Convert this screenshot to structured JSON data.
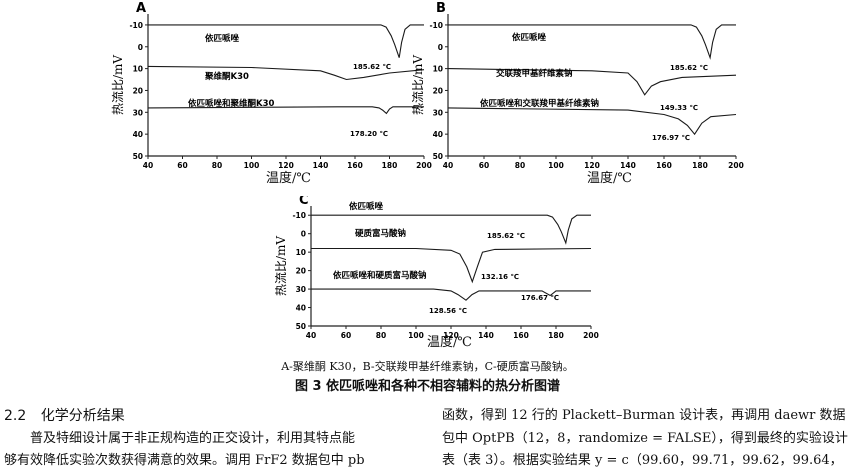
{
  "figure": {
    "subcaption": "A-聚维酮 K30，B-交联羧甲基纤维素钠，C-硬质富马酸钠。",
    "caption": "图 3   依匹哌唑和各种不相容辅料的热分析图谱"
  },
  "chart_data": [
    {
      "type": "line",
      "panel_label": "A",
      "xlabel": "温度/℃",
      "ylabel": "热流比/mV",
      "xlim": [
        40,
        200
      ],
      "ylim": [
        -15,
        50
      ],
      "y_inverted": true,
      "x_ticks": [
        "40",
        "60",
        "80",
        "100",
        "120",
        "140",
        "160",
        "180",
        "200"
      ],
      "y_ticks": [
        "-10",
        "0",
        "10",
        "20",
        "30",
        "40",
        "50"
      ],
      "series": [
        {
          "name": "依匹哌唑",
          "x": [
            40,
            175,
            178,
            181,
            183,
            185.6,
            187,
            189,
            192,
            200
          ],
          "y": [
            -10,
            -10,
            -9,
            -5,
            -1,
            5,
            -2,
            -8,
            -10,
            -10
          ],
          "annotation": "185.62 ℃"
        },
        {
          "name": "聚维酮K30",
          "x": [
            40,
            100,
            140,
            148,
            155,
            165,
            180,
            200
          ],
          "y": [
            9,
            9.5,
            11,
            13,
            15,
            14,
            12,
            10.5
          ],
          "annotation": ""
        },
        {
          "name": "依匹哌唑和聚维酮K30",
          "x": [
            40,
            150,
            170,
            174,
            176,
            178.2,
            180,
            182,
            200
          ],
          "y": [
            28,
            27.5,
            27.5,
            28,
            29,
            30.5,
            28.5,
            27.5,
            27.5
          ],
          "annotation": "178.20 ℃"
        }
      ]
    },
    {
      "type": "line",
      "panel_label": "B",
      "xlabel": "温度/℃",
      "ylabel": "热流比/mV",
      "xlim": [
        40,
        200
      ],
      "ylim": [
        -15,
        50
      ],
      "y_inverted": true,
      "x_ticks": [
        "40",
        "60",
        "80",
        "100",
        "120",
        "140",
        "160",
        "180",
        "200"
      ],
      "y_ticks": [
        "-10",
        "0",
        "10",
        "20",
        "30",
        "40",
        "50"
      ],
      "series": [
        {
          "name": "依匹哌唑",
          "x": [
            40,
            175,
            178,
            181,
            183,
            185.6,
            187,
            189,
            192,
            200
          ],
          "y": [
            -10,
            -10,
            -9,
            -5,
            -1,
            5,
            -2,
            -8,
            -10,
            -10
          ],
          "annotation": "185.62 ℃"
        },
        {
          "name": "交联羧甲基纤维素钠",
          "x": [
            40,
            120,
            140,
            145,
            149.3,
            153,
            158,
            170,
            200
          ],
          "y": [
            10,
            11,
            12,
            16,
            22,
            18,
            16,
            14,
            13
          ],
          "annotation": "149.33 ℃"
        },
        {
          "name": "依匹哌唑和交联羧甲基纤维素钠",
          "x": [
            40,
            140,
            160,
            168,
            173,
            177,
            181,
            186,
            200
          ],
          "y": [
            28,
            29,
            31,
            33,
            36,
            40,
            35,
            32,
            31
          ],
          "annotation": "176.97 ℃"
        }
      ]
    },
    {
      "type": "line",
      "panel_label": "C",
      "xlabel": "温度/℃",
      "ylabel": "热流比/mV",
      "xlim": [
        40,
        200
      ],
      "ylim": [
        -15,
        50
      ],
      "y_inverted": true,
      "x_ticks": [
        "40",
        "60",
        "80",
        "100",
        "120",
        "140",
        "160",
        "180",
        "200"
      ],
      "y_ticks": [
        "-10",
        "0",
        "10",
        "20",
        "30",
        "40",
        "50"
      ],
      "series": [
        {
          "name": "依匹哌唑",
          "x": [
            40,
            175,
            178,
            181,
            183,
            185.6,
            187,
            189,
            192,
            200
          ],
          "y": [
            -10,
            -10,
            -9,
            -5,
            -1,
            5,
            -2,
            -8,
            -10,
            -10
          ],
          "annotation": "185.62 ℃"
        },
        {
          "name": "硬质富马酸钠",
          "x": [
            40,
            100,
            120,
            125,
            129,
            132.2,
            135,
            138,
            145,
            200
          ],
          "y": [
            8,
            8,
            9,
            11,
            18,
            26,
            18,
            10,
            8.5,
            8
          ],
          "annotation": "132.16 ℃"
        },
        {
          "name": "依匹哌唑和硬质富马酸钠",
          "x": [
            40,
            110,
            120,
            124,
            128.6,
            132,
            136,
            160,
            172,
            176.7,
            180,
            200
          ],
          "y": [
            30,
            30,
            31,
            33,
            36,
            33,
            31,
            31,
            31,
            33.5,
            31,
            31
          ],
          "annotation": "128.56 ℃"
        },
        {
          "name": "",
          "x": [],
          "y": [],
          "annotation": "176.67 ℃"
        }
      ]
    }
  ],
  "section": {
    "number": "2.2",
    "title": "化学分析结果"
  },
  "text": {
    "left_line1": "普及特细设计属于非正规构造的正交设计，利用其特点能",
    "left_line2": "够有效降低实验次数获得满意的效果。调用 FrF2 数据包中 pb",
    "right_line1": "函数，得到 12 行的 Plackett–Burman 设计表，再调用 daewr 数据",
    "right_line2": "包中 OptPB（12，8，randomize = FALSE），得到最终的实验设计",
    "right_line3": "表（表 3）。根据实验结果 y = c（99.60，99.71，99.62，99.64，"
  }
}
